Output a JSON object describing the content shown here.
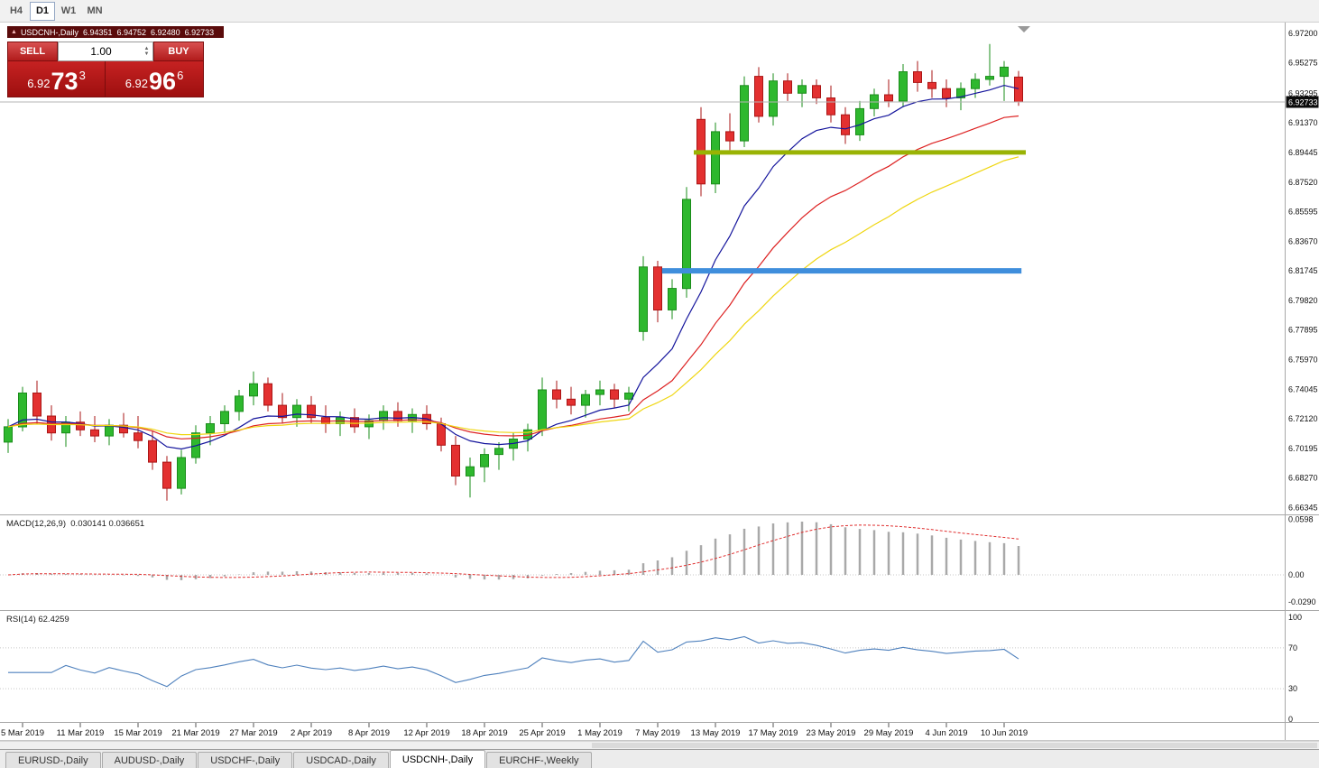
{
  "toolbar": {
    "timeframes": [
      {
        "label": "H4",
        "active": false
      },
      {
        "label": "D1",
        "active": true
      },
      {
        "label": "W1",
        "active": false
      },
      {
        "label": "MN",
        "active": false
      }
    ]
  },
  "chart": {
    "symbol_title": "USDCNH-,Daily",
    "ohlc_display": {
      "open": "6.94351",
      "high": "6.94752",
      "low": "6.92480",
      "close": "6.92733"
    },
    "current_price": "6.92733",
    "trade_panel": {
      "sell_label": "SELL",
      "buy_label": "BUY",
      "volume": "1.00",
      "sell_price_base": "6.92",
      "sell_price_pips": "73",
      "sell_price_frac": "3",
      "buy_price_base": "6.92",
      "buy_price_pips": "96",
      "buy_price_frac": "6",
      "panel_color": "#b21c1c"
    }
  },
  "chart_data": {
    "type": "candlestick",
    "title": "USDCNH-,Daily",
    "symbol": "USDCNH-",
    "timeframe": "Daily",
    "grid": false,
    "legend_position": "none",
    "price_axis": {
      "min": 6.659,
      "max": 6.979,
      "labels": [
        {
          "text": "6.97200",
          "value": 6.972
        },
        {
          "text": "6.95275",
          "value": 6.95275
        },
        {
          "text": "6.93295",
          "value": 6.93295
        },
        {
          "text": "6.91370",
          "value": 6.9137
        },
        {
          "text": "6.89445",
          "value": 6.89445
        },
        {
          "text": "6.87520",
          "value": 6.8752
        },
        {
          "text": "6.85595",
          "value": 6.85595
        },
        {
          "text": "6.83670",
          "value": 6.8367
        },
        {
          "text": "6.81745",
          "value": 6.81745
        },
        {
          "text": "6.79820",
          "value": 6.7982
        },
        {
          "text": "6.77895",
          "value": 6.77895
        },
        {
          "text": "6.75970",
          "value": 6.7597
        },
        {
          "text": "6.74045",
          "value": 6.74045
        },
        {
          "text": "6.72120",
          "value": 6.7212
        },
        {
          "text": "6.70195",
          "value": 6.70195
        },
        {
          "text": "6.68270",
          "value": 6.6827
        },
        {
          "text": "6.66345",
          "value": 6.66345
        }
      ]
    },
    "time_axis_labels": [
      {
        "index": 1,
        "label": "5 Mar 2019"
      },
      {
        "index": 5,
        "label": "11 Mar 2019"
      },
      {
        "index": 9,
        "label": "15 Mar 2019"
      },
      {
        "index": 13,
        "label": "21 Mar 2019"
      },
      {
        "index": 17,
        "label": "27 Mar 2019"
      },
      {
        "index": 21,
        "label": "2 Apr 2019"
      },
      {
        "index": 25,
        "label": "8 Apr 2019"
      },
      {
        "index": 29,
        "label": "12 Apr 2019"
      },
      {
        "index": 33,
        "label": "18 Apr 2019"
      },
      {
        "index": 37,
        "label": "25 Apr 2019"
      },
      {
        "index": 41,
        "label": "1 May 2019"
      },
      {
        "index": 45,
        "label": "7 May 2019"
      },
      {
        "index": 49,
        "label": "13 May 2019"
      },
      {
        "index": 53,
        "label": "17 May 2019"
      },
      {
        "index": 57,
        "label": "23 May 2019"
      },
      {
        "index": 61,
        "label": "29 May 2019"
      },
      {
        "index": 65,
        "label": "4 Jun 2019"
      },
      {
        "index": 69,
        "label": "10 Jun 2019"
      }
    ],
    "candles": [
      [
        "2019.03.04",
        6.706,
        6.721,
        6.699,
        6.716
      ],
      [
        "2019.03.05",
        6.716,
        6.742,
        6.713,
        6.738
      ],
      [
        "2019.03.06",
        6.738,
        6.746,
        6.718,
        6.723
      ],
      [
        "2019.03.07",
        6.723,
        6.73,
        6.707,
        6.712
      ],
      [
        "2019.03.08",
        6.712,
        6.723,
        6.703,
        6.719
      ],
      [
        "2019.03.11",
        6.719,
        6.726,
        6.71,
        6.714
      ],
      [
        "2019.03.12",
        6.714,
        6.723,
        6.706,
        6.71
      ],
      [
        "2019.03.13",
        6.71,
        6.721,
        6.704,
        6.717
      ],
      [
        "2019.03.14",
        6.717,
        6.725,
        6.709,
        6.712
      ],
      [
        "2019.03.15",
        6.712,
        6.723,
        6.702,
        6.707
      ],
      [
        "2019.03.18",
        6.707,
        6.713,
        6.688,
        6.693
      ],
      [
        "2019.03.19",
        6.693,
        6.697,
        6.668,
        6.676
      ],
      [
        "2019.03.20",
        6.676,
        6.701,
        6.672,
        6.696
      ],
      [
        "2019.03.21",
        6.696,
        6.717,
        6.692,
        6.712
      ],
      [
        "2019.03.22",
        6.712,
        6.723,
        6.704,
        6.718
      ],
      [
        "2019.03.25",
        6.718,
        6.73,
        6.712,
        6.726
      ],
      [
        "2019.03.26",
        6.726,
        6.74,
        6.72,
        6.736
      ],
      [
        "2019.03.27",
        6.736,
        6.752,
        6.73,
        6.744
      ],
      [
        "2019.03.28",
        6.744,
        6.748,
        6.726,
        6.73
      ],
      [
        "2019.03.29",
        6.73,
        6.738,
        6.718,
        6.722
      ],
      [
        "2019.04.01",
        6.722,
        6.734,
        6.716,
        6.73
      ],
      [
        "2019.04.02",
        6.73,
        6.736,
        6.718,
        6.722
      ],
      [
        "2019.04.03",
        6.722,
        6.73,
        6.712,
        6.718
      ],
      [
        "2019.04.04",
        6.718,
        6.726,
        6.71,
        6.722
      ],
      [
        "2019.04.05",
        6.722,
        6.728,
        6.712,
        6.716
      ],
      [
        "2019.04.08",
        6.716,
        6.724,
        6.708,
        6.72
      ],
      [
        "2019.04.09",
        6.72,
        6.73,
        6.714,
        6.726
      ],
      [
        "2019.04.10",
        6.726,
        6.732,
        6.716,
        6.72
      ],
      [
        "2019.04.11",
        6.72,
        6.728,
        6.712,
        6.724
      ],
      [
        "2019.04.12",
        6.724,
        6.73,
        6.714,
        6.718
      ],
      [
        "2019.04.15",
        6.718,
        6.722,
        6.7,
        6.704
      ],
      [
        "2019.04.16",
        6.704,
        6.71,
        6.678,
        6.684
      ],
      [
        "2019.04.17",
        6.684,
        6.696,
        6.67,
        6.69
      ],
      [
        "2019.04.18",
        6.69,
        6.702,
        6.68,
        6.698
      ],
      [
        "2019.04.22",
        6.698,
        6.706,
        6.688,
        6.702
      ],
      [
        "2019.04.23",
        6.702,
        6.712,
        6.694,
        6.708
      ],
      [
        "2019.04.24",
        6.708,
        6.718,
        6.7,
        6.714
      ],
      [
        "2019.04.25",
        6.714,
        6.748,
        6.71,
        6.74
      ],
      [
        "2019.04.26",
        6.74,
        6.746,
        6.728,
        6.734
      ],
      [
        "2019.04.29",
        6.734,
        6.742,
        6.724,
        6.73
      ],
      [
        "2019.04.30",
        6.73,
        6.74,
        6.722,
        6.737
      ],
      [
        "2019.05.01",
        6.737,
        6.746,
        6.73,
        6.74
      ],
      [
        "2019.05.02",
        6.74,
        6.744,
        6.728,
        6.734
      ],
      [
        "2019.05.03",
        6.734,
        6.742,
        6.726,
        6.738
      ],
      [
        "2019.05.06",
        6.778,
        6.827,
        6.772,
        6.82
      ],
      [
        "2019.05.07",
        6.82,
        6.824,
        6.784,
        6.792
      ],
      [
        "2019.05.08",
        6.792,
        6.812,
        6.786,
        6.806
      ],
      [
        "2019.05.09",
        6.806,
        6.872,
        6.8,
        6.864
      ],
      [
        "2019.05.10",
        6.916,
        6.924,
        6.866,
        6.874
      ],
      [
        "2019.05.13",
        6.874,
        6.914,
        6.868,
        6.908
      ],
      [
        "2019.05.14",
        6.908,
        6.92,
        6.896,
        6.902
      ],
      [
        "2019.05.15",
        6.902,
        6.944,
        6.898,
        6.938
      ],
      [
        "2019.05.16",
        6.944,
        6.95,
        6.914,
        6.918
      ],
      [
        "2019.05.17",
        6.918,
        6.946,
        6.912,
        6.941
      ],
      [
        "2019.05.20",
        6.941,
        6.946,
        6.928,
        6.933
      ],
      [
        "2019.05.21",
        6.933,
        6.942,
        6.924,
        6.938
      ],
      [
        "2019.05.22",
        6.938,
        6.942,
        6.926,
        6.93
      ],
      [
        "2019.05.23",
        6.93,
        6.938,
        6.914,
        6.919
      ],
      [
        "2019.05.24",
        6.919,
        6.924,
        6.9,
        6.906
      ],
      [
        "2019.05.27",
        6.906,
        6.928,
        6.902,
        6.923
      ],
      [
        "2019.05.28",
        6.923,
        6.936,
        6.918,
        6.932
      ],
      [
        "2019.05.29",
        6.932,
        6.942,
        6.924,
        6.928
      ],
      [
        "2019.05.30",
        6.928,
        6.952,
        6.924,
        6.947
      ],
      [
        "2019.05.31",
        6.947,
        6.954,
        6.934,
        6.94
      ],
      [
        "2019.06.03",
        6.94,
        6.948,
        6.93,
        6.936
      ],
      [
        "2019.06.04",
        6.936,
        6.942,
        6.924,
        6.93
      ],
      [
        "2019.06.05",
        6.93,
        6.94,
        6.922,
        6.936
      ],
      [
        "2019.06.06",
        6.936,
        6.946,
        6.93,
        6.942
      ],
      [
        "2019.06.07",
        6.942,
        6.965,
        6.938,
        6.944
      ],
      [
        "2019.06.10",
        6.944,
        6.954,
        6.928,
        6.95
      ],
      [
        "2019.06.11",
        6.94351,
        6.94752,
        6.9248,
        6.92733
      ]
    ],
    "moving_averages": [
      {
        "name": "ma-fast",
        "type": "ema",
        "period": 9,
        "color": "#14149c"
      },
      {
        "name": "ma-mid",
        "type": "ema",
        "period": 19,
        "color": "#dd2222"
      },
      {
        "name": "ma-slow",
        "type": "ema",
        "period": 30,
        "color": "#efd611"
      }
    ],
    "hlines": [
      {
        "name": "resistance-line",
        "price": 6.8945,
        "from_index": 47.5,
        "to_index": 70.5,
        "color": "#99b304",
        "width": 5
      },
      {
        "name": "support-line",
        "price": 6.8175,
        "from_index": 45.3,
        "to_index": 70.2,
        "color": "#3f8edc",
        "width": 6
      }
    ],
    "bid_line": {
      "price": 6.92733,
      "color": "#b4b4b4"
    },
    "indicators": {
      "macd": {
        "label": "MACD(12,26,9)",
        "values_text": "0.030141 0.036651",
        "fast": 12,
        "slow": 26,
        "signal": 9,
        "scale_labels": [
          {
            "text": "0.0598",
            "value": 0.0598
          },
          {
            "text": "0.00",
            "value": 0
          },
          {
            "text": "-0.0290",
            "value": -0.029
          }
        ]
      },
      "rsi": {
        "label": "RSI(14)",
        "value_text": "62.4259",
        "period": 14,
        "levels": [
          70,
          30
        ],
        "scale_labels": [
          {
            "text": "100",
            "value": 100
          },
          {
            "text": "70",
            "value": 70
          },
          {
            "text": "30",
            "value": 30
          },
          {
            "text": "0",
            "value": 0
          }
        ]
      }
    },
    "colors": {
      "up": "#2eb82e",
      "up_stroke": "#1a8c1a",
      "down": "#e33030",
      "down_stroke": "#aa1515",
      "macd_bar": "#a9a9a9",
      "macd_signal": "#e03030",
      "rsi": "#4f81bd",
      "axis_text": "#111111",
      "badge_bg": "#0a0a0a"
    }
  },
  "tabs": [
    {
      "label": "EURUSD-,Daily",
      "active": false
    },
    {
      "label": "AUDUSD-,Daily",
      "active": false
    },
    {
      "label": "USDCHF-,Daily",
      "active": false
    },
    {
      "label": "USDCAD-,Daily",
      "active": false
    },
    {
      "label": "USDCNH-,Daily",
      "active": true
    },
    {
      "label": "EURCHF-,Weekly",
      "active": false
    }
  ]
}
